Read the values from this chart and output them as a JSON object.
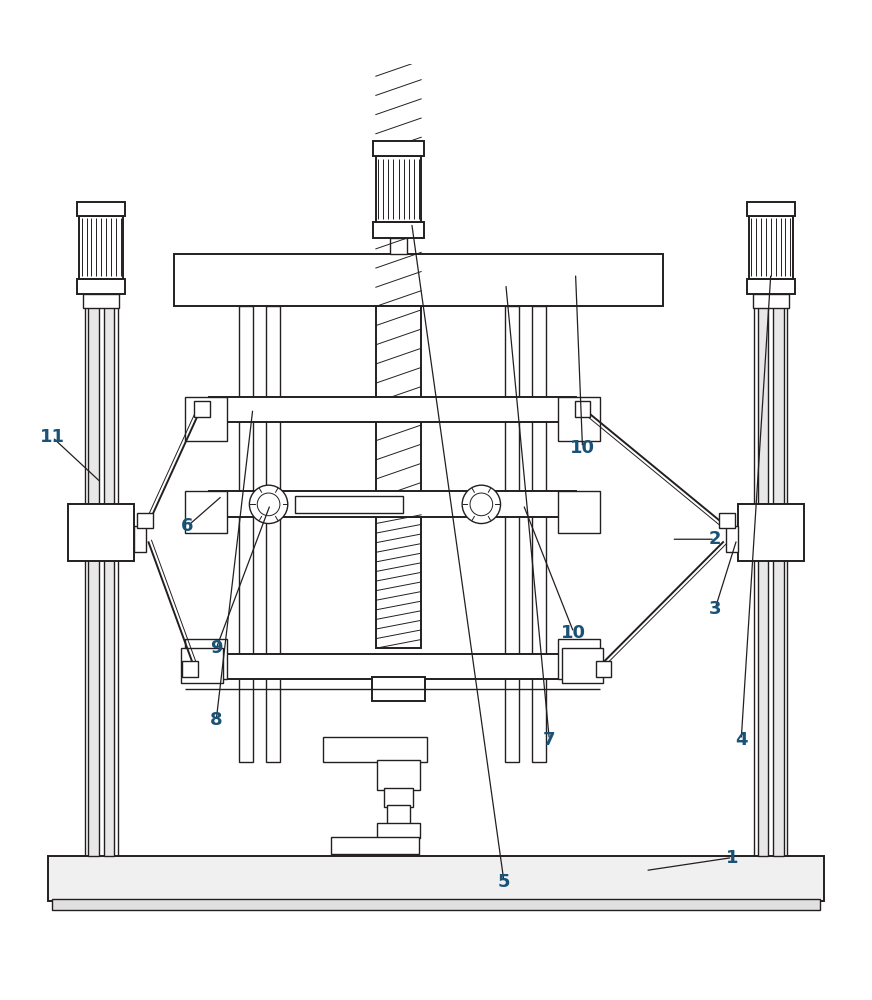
{
  "bg_color": "#ffffff",
  "line_color": "#231f20",
  "fig_width": 8.72,
  "fig_height": 10.0,
  "dpi": 100,
  "label_color": "#1a5276",
  "label_fs": 13
}
